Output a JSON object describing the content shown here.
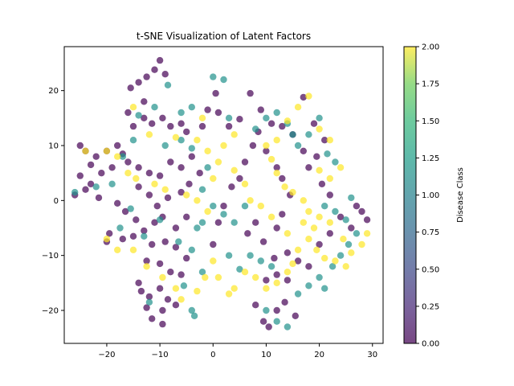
{
  "chart_data": {
    "type": "scatter",
    "title": "t-SNE Visualization of Latent Factors",
    "xlabel": "",
    "ylabel": "",
    "xlim": [
      -28,
      32
    ],
    "ylim": [
      -26,
      28
    ],
    "xticks": [
      -20,
      -10,
      0,
      10,
      20,
      30
    ],
    "yticks": [
      -20,
      -10,
      0,
      10,
      20
    ],
    "colormap": "viridis",
    "colors": {
      "class_0": "#440154",
      "class_1": "#21918c",
      "class_2": "#fde725"
    },
    "point_alpha": 0.7,
    "colorbar": {
      "label": "Disease Class",
      "range": [
        0,
        2
      ],
      "ticks": [
        "0.00",
        "0.25",
        "0.50",
        "0.75",
        "1.00",
        "1.25",
        "1.50",
        "1.75",
        "2.00"
      ]
    },
    "series": [
      {
        "class": 0,
        "points": [
          [
            -10,
            25.5
          ],
          [
            -11,
            23.8
          ],
          [
            -12.5,
            22.5
          ],
          [
            -14,
            21.5
          ],
          [
            -15.5,
            20.5
          ],
          [
            -9,
            23
          ],
          [
            -13,
            18
          ],
          [
            -16,
            16
          ],
          [
            -15,
            13.5
          ],
          [
            -13,
            15
          ],
          [
            -11.5,
            14
          ],
          [
            -9.5,
            15
          ],
          [
            -8,
            13.5
          ],
          [
            -6,
            14
          ],
          [
            -5,
            12.5
          ],
          [
            -2,
            13.5
          ],
          [
            -1,
            16.5
          ],
          [
            0.5,
            19.5
          ],
          [
            1,
            16
          ],
          [
            3,
            13.5
          ],
          [
            5,
            14.8
          ],
          [
            7,
            19.5
          ],
          [
            9,
            16.5
          ],
          [
            11,
            14
          ],
          [
            13,
            13.5
          ],
          [
            15,
            12
          ],
          [
            17,
            18.8
          ],
          [
            19,
            14
          ],
          [
            -25,
            10
          ],
          [
            -24,
            9
          ],
          [
            -22,
            8
          ],
          [
            -20,
            9
          ],
          [
            -18,
            10
          ],
          [
            -17,
            8.5
          ],
          [
            -19,
            6
          ],
          [
            -21,
            5
          ],
          [
            -23,
            6.5
          ],
          [
            -25,
            4.5
          ],
          [
            -24,
            2
          ],
          [
            -26,
            1
          ],
          [
            -23,
            3
          ],
          [
            -21.5,
            0.5
          ],
          [
            -16,
            7
          ],
          [
            -14,
            6
          ],
          [
            -12,
            5
          ],
          [
            -10,
            4.5
          ],
          [
            -8,
            7
          ],
          [
            -6,
            6
          ],
          [
            -4,
            8
          ],
          [
            -2.5,
            5
          ],
          [
            -14,
            2.5
          ],
          [
            -12,
            1
          ],
          [
            -10.5,
            -1
          ],
          [
            -8.5,
            0.5
          ],
          [
            -6,
            1.5
          ],
          [
            -4.5,
            3
          ],
          [
            -18,
            -0.5
          ],
          [
            -16.5,
            -2
          ],
          [
            -14.5,
            -3.5
          ],
          [
            -13,
            -5.5
          ],
          [
            -11,
            -4
          ],
          [
            -9.5,
            -3
          ],
          [
            -7,
            -5
          ],
          [
            -5,
            -3
          ],
          [
            -19.5,
            -6
          ],
          [
            -20,
            -7.5
          ],
          [
            -17,
            -7
          ],
          [
            -15,
            -6.5
          ],
          [
            -11.5,
            -8
          ],
          [
            -9,
            -7.5
          ],
          [
            -7,
            -8.5
          ],
          [
            -5,
            -10.5
          ],
          [
            -12.5,
            -11
          ],
          [
            -10,
            -11.5
          ],
          [
            -8,
            -13
          ],
          [
            -6,
            -13.5
          ],
          [
            -14,
            -15
          ],
          [
            -13.5,
            -16.5
          ],
          [
            -12,
            -17.5
          ],
          [
            -10,
            -16
          ],
          [
            -8.5,
            -18
          ],
          [
            -7,
            -19
          ],
          [
            -12.5,
            -19.5
          ],
          [
            -11.5,
            -21.5
          ],
          [
            -9.5,
            -22.5
          ],
          [
            -9.5,
            -20
          ],
          [
            0,
            -8
          ],
          [
            1,
            -4
          ],
          [
            2,
            -1
          ],
          [
            3.5,
            2.5
          ],
          [
            5,
            4
          ],
          [
            6,
            7
          ],
          [
            7.5,
            10
          ],
          [
            8.5,
            12.5
          ],
          [
            10,
            9
          ],
          [
            12,
            6
          ],
          [
            13,
            4
          ],
          [
            14.5,
            1
          ],
          [
            13,
            -2.5
          ],
          [
            12,
            -5
          ],
          [
            8,
            -4
          ],
          [
            6.5,
            -6
          ],
          [
            9.5,
            -7.5
          ],
          [
            11.5,
            -10.5
          ],
          [
            14,
            -9.5
          ],
          [
            16,
            -11
          ],
          [
            18,
            -12
          ],
          [
            20,
            -8
          ],
          [
            22,
            -6
          ],
          [
            24,
            -3
          ],
          [
            26,
            -5
          ],
          [
            28,
            -2
          ],
          [
            29,
            -3.5
          ],
          [
            27,
            -1
          ],
          [
            8,
            -19
          ],
          [
            9.5,
            -22
          ],
          [
            10.5,
            -23
          ],
          [
            12,
            -20
          ],
          [
            13.5,
            -18.5
          ],
          [
            15.5,
            -21
          ],
          [
            10,
            -14.5
          ],
          [
            12,
            -13.5
          ],
          [
            14,
            -14.5
          ],
          [
            18,
            6
          ],
          [
            20.5,
            3
          ],
          [
            22,
            1
          ],
          [
            19.5,
            8
          ],
          [
            17,
            9
          ],
          [
            21,
            11
          ]
        ]
      },
      {
        "class": 1,
        "points": [
          [
            0,
            22.5
          ],
          [
            -8.5,
            21
          ],
          [
            -11,
            17
          ],
          [
            -14,
            15.5
          ],
          [
            -6,
            16
          ],
          [
            -9,
            10
          ],
          [
            -4,
            17
          ],
          [
            -15,
            11
          ],
          [
            -17,
            8
          ],
          [
            -19,
            3
          ],
          [
            -26,
            1.5
          ],
          [
            -22,
            2.5
          ],
          [
            -17.5,
            -5
          ],
          [
            -15.5,
            -1.5
          ],
          [
            -13,
            -6.5
          ],
          [
            -10,
            -3.5
          ],
          [
            -6.5,
            -7.5
          ],
          [
            -4,
            -9
          ],
          [
            -3,
            -5
          ],
          [
            -2,
            -4
          ],
          [
            0,
            -1
          ],
          [
            2,
            -2.5
          ],
          [
            4,
            -4
          ],
          [
            6,
            -1
          ],
          [
            3,
            -10
          ],
          [
            5,
            -12.5
          ],
          [
            7,
            -10
          ],
          [
            9,
            -11
          ],
          [
            11,
            -12
          ],
          [
            -12,
            -18.5
          ],
          [
            -4,
            -20
          ],
          [
            -3.5,
            -21
          ],
          [
            -5.5,
            -15.5
          ],
          [
            -2,
            -13
          ],
          [
            10,
            -20
          ],
          [
            12,
            -22
          ],
          [
            14,
            -23
          ],
          [
            16,
            -17
          ],
          [
            18,
            -15.5
          ],
          [
            20,
            -14
          ],
          [
            21,
            -16
          ],
          [
            22.5,
            -12
          ],
          [
            24,
            -10
          ],
          [
            25.5,
            -8
          ],
          [
            27,
            -6
          ],
          [
            25,
            -3.5
          ],
          [
            26,
            0.5
          ],
          [
            23,
            -2
          ],
          [
            21,
            -1
          ],
          [
            8,
            13
          ],
          [
            10,
            15
          ],
          [
            12,
            16
          ],
          [
            14,
            14
          ],
          [
            15,
            12
          ],
          [
            16,
            10
          ],
          [
            18,
            12
          ],
          [
            20,
            15
          ],
          [
            21.5,
            8.5
          ],
          [
            23,
            7
          ],
          [
            3,
            15
          ],
          [
            2,
            22
          ],
          [
            -6,
            11
          ],
          [
            -4,
            9.5
          ],
          [
            -2,
            2
          ],
          [
            -1,
            6
          ]
        ]
      },
      {
        "class": 2,
        "points": [
          [
            -15,
            17
          ],
          [
            -12,
            12
          ],
          [
            -7,
            11.5
          ],
          [
            -3,
            11
          ],
          [
            -1,
            9
          ],
          [
            1,
            7
          ],
          [
            4,
            5.5
          ],
          [
            6,
            3
          ],
          [
            -24,
            9
          ],
          [
            -20,
            9
          ],
          [
            -18,
            8
          ],
          [
            -16,
            5
          ],
          [
            -14.5,
            4
          ],
          [
            -11,
            3
          ],
          [
            -9,
            2
          ],
          [
            -5,
            1
          ],
          [
            -3,
            0
          ],
          [
            -1,
            -2
          ],
          [
            -20,
            -7
          ],
          [
            -18,
            -9
          ],
          [
            -15,
            -9
          ],
          [
            -12.5,
            -12
          ],
          [
            -9.5,
            -14
          ],
          [
            -7,
            -16
          ],
          [
            -6,
            -18
          ],
          [
            -3,
            -16.5
          ],
          [
            -1.5,
            -14
          ],
          [
            0,
            -11
          ],
          [
            1,
            -14
          ],
          [
            3,
            -17
          ],
          [
            4,
            -16
          ],
          [
            6,
            -13
          ],
          [
            8,
            -14
          ],
          [
            10,
            -16
          ],
          [
            12,
            -15
          ],
          [
            14,
            -13
          ],
          [
            15,
            -11.5
          ],
          [
            16,
            -9
          ],
          [
            18,
            -7
          ],
          [
            19.5,
            -9
          ],
          [
            21,
            -10.5
          ],
          [
            23,
            -11
          ],
          [
            25,
            -12
          ],
          [
            26,
            -9.5
          ],
          [
            28,
            -8
          ],
          [
            29,
            -6
          ],
          [
            24.5,
            -7
          ],
          [
            22,
            -4
          ],
          [
            20,
            -3
          ],
          [
            18,
            -2
          ],
          [
            17,
            0
          ],
          [
            15,
            1.5
          ],
          [
            13.5,
            2.5
          ],
          [
            12,
            5
          ],
          [
            11,
            7.5
          ],
          [
            10,
            10
          ],
          [
            12,
            11
          ],
          [
            14,
            14.5
          ],
          [
            16,
            17
          ],
          [
            18,
            19
          ],
          [
            20,
            13
          ],
          [
            22,
            11
          ],
          [
            24,
            6
          ],
          [
            22,
            4
          ],
          [
            20,
            5.5
          ],
          [
            7,
            0
          ],
          [
            9,
            -1
          ],
          [
            11,
            -3
          ],
          [
            14,
            -6
          ],
          [
            17,
            -4
          ],
          [
            19,
            -5
          ],
          [
            2,
            10
          ],
          [
            4,
            12
          ],
          [
            -2,
            15
          ],
          [
            0,
            4
          ]
        ]
      }
    ]
  }
}
